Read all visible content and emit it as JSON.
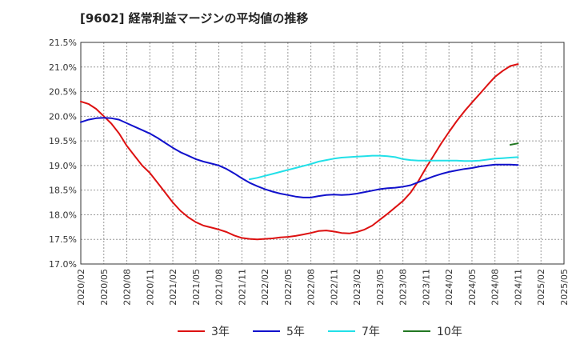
{
  "chart_data": {
    "type": "line",
    "title": "[9602]  経常利益マージンの平均値の推移",
    "xlabel": "",
    "ylabel": "",
    "ylim": [
      17.0,
      21.5
    ],
    "y_ticks": [
      "17.0%",
      "17.5%",
      "18.0%",
      "18.5%",
      "19.0%",
      "19.5%",
      "20.0%",
      "20.5%",
      "21.0%",
      "21.5%"
    ],
    "x_ticks": [
      "2020/02",
      "2020/05",
      "2020/08",
      "2020/11",
      "2021/02",
      "2021/05",
      "2021/08",
      "2021/11",
      "2022/02",
      "2022/05",
      "2022/08",
      "2022/11",
      "2023/02",
      "2023/05",
      "2023/08",
      "2023/11",
      "2024/02",
      "2024/05",
      "2024/08",
      "2024/11",
      "2025/02",
      "2025/05"
    ],
    "grid": true,
    "legend_position": "bottom",
    "series": [
      {
        "name": "3年",
        "color": "#dd1111",
        "points": [
          [
            0,
            20.3
          ],
          [
            1,
            20.25
          ],
          [
            2,
            20.15
          ],
          [
            3,
            20.0
          ],
          [
            4,
            19.85
          ],
          [
            5,
            19.65
          ],
          [
            6,
            19.4
          ],
          [
            7,
            19.2
          ],
          [
            8,
            19.0
          ],
          [
            9,
            18.85
          ],
          [
            10,
            18.65
          ],
          [
            11,
            18.45
          ],
          [
            12,
            18.25
          ],
          [
            13,
            18.08
          ],
          [
            14,
            17.95
          ],
          [
            15,
            17.85
          ],
          [
            16,
            17.78
          ],
          [
            17,
            17.74
          ],
          [
            18,
            17.7
          ],
          [
            19,
            17.65
          ],
          [
            20,
            17.58
          ],
          [
            21,
            17.53
          ],
          [
            22,
            17.51
          ],
          [
            23,
            17.5
          ],
          [
            24,
            17.51
          ],
          [
            25,
            17.52
          ],
          [
            26,
            17.54
          ],
          [
            27,
            17.55
          ],
          [
            28,
            17.57
          ],
          [
            29,
            17.6
          ],
          [
            30,
            17.63
          ],
          [
            31,
            17.67
          ],
          [
            32,
            17.68
          ],
          [
            33,
            17.66
          ],
          [
            34,
            17.63
          ],
          [
            35,
            17.62
          ],
          [
            36,
            17.65
          ],
          [
            37,
            17.7
          ],
          [
            38,
            17.78
          ],
          [
            39,
            17.9
          ],
          [
            40,
            18.02
          ],
          [
            41,
            18.15
          ],
          [
            42,
            18.28
          ],
          [
            43,
            18.45
          ],
          [
            44,
            18.68
          ],
          [
            45,
            18.95
          ],
          [
            46,
            19.2
          ],
          [
            47,
            19.45
          ],
          [
            48,
            19.68
          ],
          [
            49,
            19.9
          ],
          [
            50,
            20.1
          ],
          [
            51,
            20.28
          ],
          [
            52,
            20.45
          ],
          [
            53,
            20.63
          ],
          [
            54,
            20.8
          ],
          [
            55,
            20.92
          ],
          [
            56,
            21.02
          ],
          [
            57,
            21.06
          ]
        ]
      },
      {
        "name": "5年",
        "color": "#1111cc",
        "points": [
          [
            0,
            19.88
          ],
          [
            1,
            19.93
          ],
          [
            2,
            19.96
          ],
          [
            3,
            19.97
          ],
          [
            4,
            19.96
          ],
          [
            5,
            19.93
          ],
          [
            6,
            19.86
          ],
          [
            7,
            19.79
          ],
          [
            8,
            19.72
          ],
          [
            9,
            19.65
          ],
          [
            10,
            19.56
          ],
          [
            11,
            19.46
          ],
          [
            12,
            19.36
          ],
          [
            13,
            19.27
          ],
          [
            14,
            19.2
          ],
          [
            15,
            19.13
          ],
          [
            16,
            19.08
          ],
          [
            17,
            19.04
          ],
          [
            18,
            19.0
          ],
          [
            19,
            18.93
          ],
          [
            20,
            18.84
          ],
          [
            21,
            18.74
          ],
          [
            22,
            18.65
          ],
          [
            23,
            18.58
          ],
          [
            24,
            18.52
          ],
          [
            25,
            18.47
          ],
          [
            26,
            18.43
          ],
          [
            27,
            18.4
          ],
          [
            28,
            18.37
          ],
          [
            29,
            18.35
          ],
          [
            30,
            18.35
          ],
          [
            31,
            18.38
          ],
          [
            32,
            18.4
          ],
          [
            33,
            18.41
          ],
          [
            34,
            18.4
          ],
          [
            35,
            18.41
          ],
          [
            36,
            18.43
          ],
          [
            37,
            18.46
          ],
          [
            38,
            18.49
          ],
          [
            39,
            18.52
          ],
          [
            40,
            18.54
          ],
          [
            41,
            18.55
          ],
          [
            42,
            18.57
          ],
          [
            43,
            18.6
          ],
          [
            44,
            18.66
          ],
          [
            45,
            18.72
          ],
          [
            46,
            18.78
          ],
          [
            47,
            18.83
          ],
          [
            48,
            18.87
          ],
          [
            49,
            18.9
          ],
          [
            50,
            18.93
          ],
          [
            51,
            18.95
          ],
          [
            52,
            18.98
          ],
          [
            53,
            19.0
          ],
          [
            54,
            19.02
          ],
          [
            55,
            19.02
          ],
          [
            56,
            19.02
          ],
          [
            57,
            19.01
          ]
        ]
      },
      {
        "name": "7年",
        "color": "#22e0e8",
        "points": [
          [
            22,
            18.72
          ],
          [
            23,
            18.75
          ],
          [
            24,
            18.79
          ],
          [
            25,
            18.83
          ],
          [
            26,
            18.87
          ],
          [
            27,
            18.91
          ],
          [
            28,
            18.95
          ],
          [
            29,
            18.99
          ],
          [
            30,
            19.03
          ],
          [
            31,
            19.08
          ],
          [
            32,
            19.11
          ],
          [
            33,
            19.14
          ],
          [
            34,
            19.16
          ],
          [
            35,
            19.17
          ],
          [
            36,
            19.18
          ],
          [
            37,
            19.19
          ],
          [
            38,
            19.2
          ],
          [
            39,
            19.2
          ],
          [
            40,
            19.19
          ],
          [
            41,
            19.17
          ],
          [
            42,
            19.13
          ],
          [
            43,
            19.11
          ],
          [
            44,
            19.1
          ],
          [
            45,
            19.1
          ],
          [
            46,
            19.1
          ],
          [
            47,
            19.1
          ],
          [
            48,
            19.1
          ],
          [
            49,
            19.1
          ],
          [
            50,
            19.09
          ],
          [
            51,
            19.09
          ],
          [
            52,
            19.1
          ],
          [
            53,
            19.12
          ],
          [
            54,
            19.14
          ],
          [
            55,
            19.15
          ],
          [
            56,
            19.16
          ],
          [
            57,
            19.17
          ]
        ]
      },
      {
        "name": "10年",
        "color": "#227722",
        "points": [
          [
            56,
            19.42
          ],
          [
            57,
            19.45
          ]
        ]
      }
    ]
  }
}
